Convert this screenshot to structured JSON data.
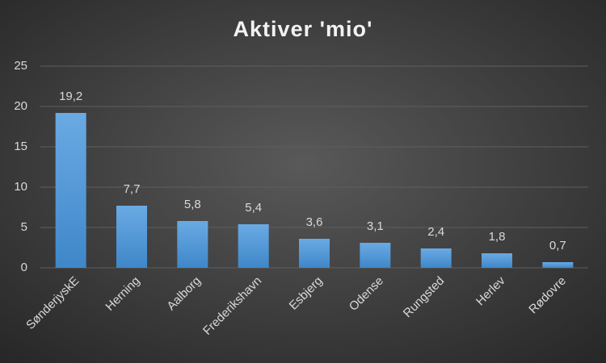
{
  "chart_data": {
    "type": "bar",
    "title": "Aktiver 'mio'",
    "categories": [
      "SønderjyskE",
      "Herning",
      "Aalborg",
      "Frederikshavn",
      "Esbjerg",
      "Odense",
      "Rungsted",
      "Herlev",
      "Rødovre"
    ],
    "values": [
      19.2,
      7.7,
      5.8,
      5.4,
      3.6,
      3.1,
      2.4,
      1.8,
      0.7
    ],
    "value_labels": [
      "19,2",
      "7,7",
      "5,8",
      "5,4",
      "3,6",
      "3,1",
      "2,4",
      "1,8",
      "0,7"
    ],
    "color": "#5b9bd5",
    "ylim": [
      0,
      25
    ],
    "yticks": [
      0,
      5,
      10,
      15,
      20,
      25
    ],
    "grid": true
  }
}
